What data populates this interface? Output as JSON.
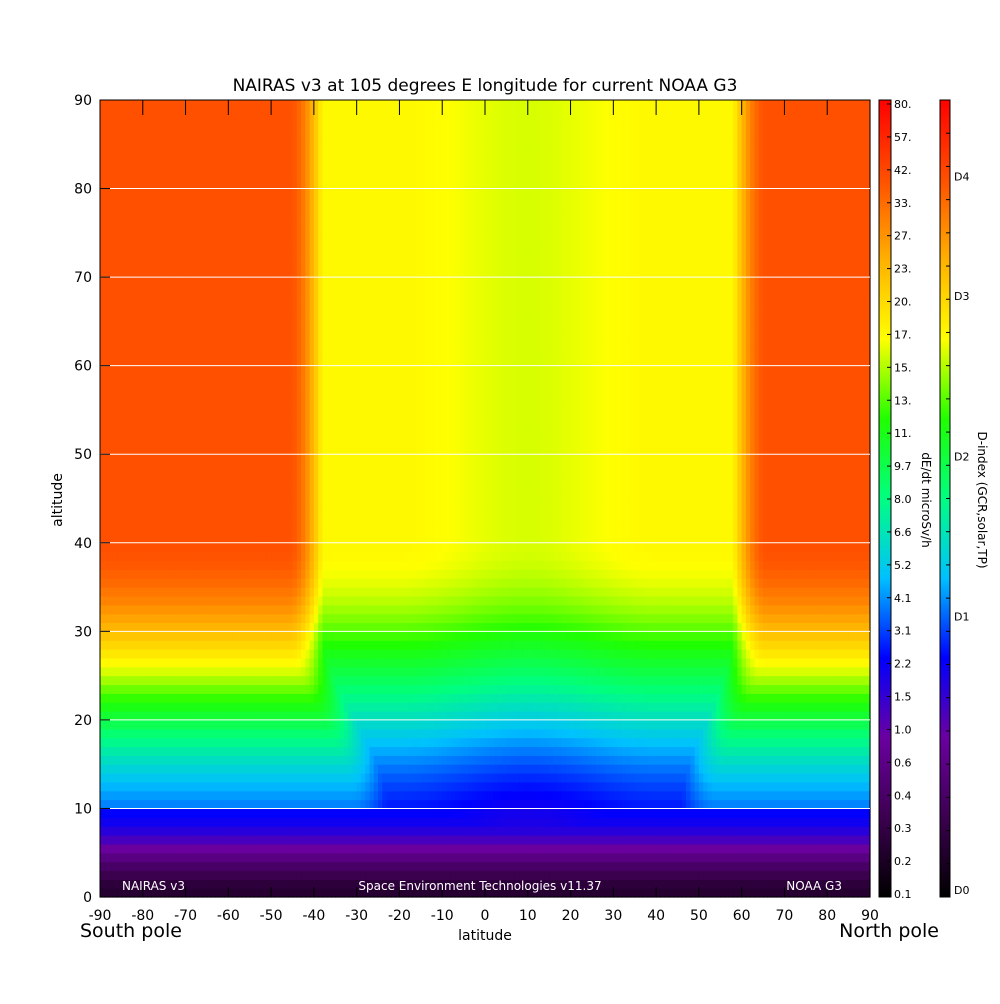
{
  "chart_data": {
    "type": "heatmap",
    "title": "NAIRAS v3 at 105 degrees E longitude for current NOAA G3",
    "xlabel": "latitude",
    "ylabel": "altitude",
    "xlim": [
      -90,
      90
    ],
    "ylim": [
      0,
      90
    ],
    "x_ticks": [
      "-90",
      "-80",
      "-70",
      "-60",
      "-50",
      "-40",
      "-30",
      "-20",
      "-10",
      "0",
      "10",
      "20",
      "30",
      "40",
      "50",
      "60",
      "70",
      "80",
      "90"
    ],
    "y_ticks": [
      "0",
      "10",
      "20",
      "30",
      "40",
      "50",
      "60",
      "70",
      "80",
      "90"
    ],
    "x_tick_values": [
      -90,
      -80,
      -70,
      -60,
      -50,
      -40,
      -30,
      -20,
      -10,
      0,
      10,
      20,
      30,
      40,
      50,
      60,
      70,
      80,
      90
    ],
    "y_tick_values": [
      0,
      10,
      20,
      30,
      40,
      50,
      60,
      70,
      80,
      90
    ],
    "horizontal_grid": true,
    "pole_labels": {
      "south": "South pole",
      "north": "North pole"
    },
    "annotations": {
      "left": "NAIRAS v3",
      "center": "Space Environment Technologies v11.37",
      "right": "NOAA G3"
    },
    "colorbar_dose": {
      "label": "dE/dt microSv/h",
      "ticks": [
        "80.",
        "57.",
        "42.",
        "33.",
        "27.",
        "23.",
        "20.",
        "17.",
        "15.",
        "13.",
        "11.",
        "9.7",
        "8.0",
        "6.6",
        "5.2",
        "4.1",
        "3.1",
        "2.2",
        "1.5",
        "1.0",
        "0.6",
        "0.4",
        "0.3",
        "0.2",
        "0.1"
      ]
    },
    "colorbar_dindex": {
      "label": "D-index (GCR,solar,TP)",
      "ticks": [
        {
          "label": "D4",
          "level": 0.904
        },
        {
          "label": "D3",
          "level": 0.754
        },
        {
          "label": "D2",
          "level": 0.553
        },
        {
          "label": "D1",
          "level": 0.352
        },
        {
          "label": "D0",
          "level": 0.0
        }
      ]
    },
    "field_model": {
      "description_levels": "normalized colour level 0=dark (0.1 microSv/h) to 1=red (80 microSv/h)",
      "high_latitude_level_top": 0.9,
      "band_edge_latitudes": {
        "south": -38,
        "north": 58
      },
      "equator_min_latitude": 10,
      "tropopause_altitude": 10
    },
    "colormap": [
      "#000000",
      "#3c0050",
      "#6a00a0",
      "#0000ff",
      "#00c0ff",
      "#00ff80",
      "#20ff00",
      "#ffff00",
      "#ffb000",
      "#ff5000",
      "#ff0000"
    ]
  }
}
